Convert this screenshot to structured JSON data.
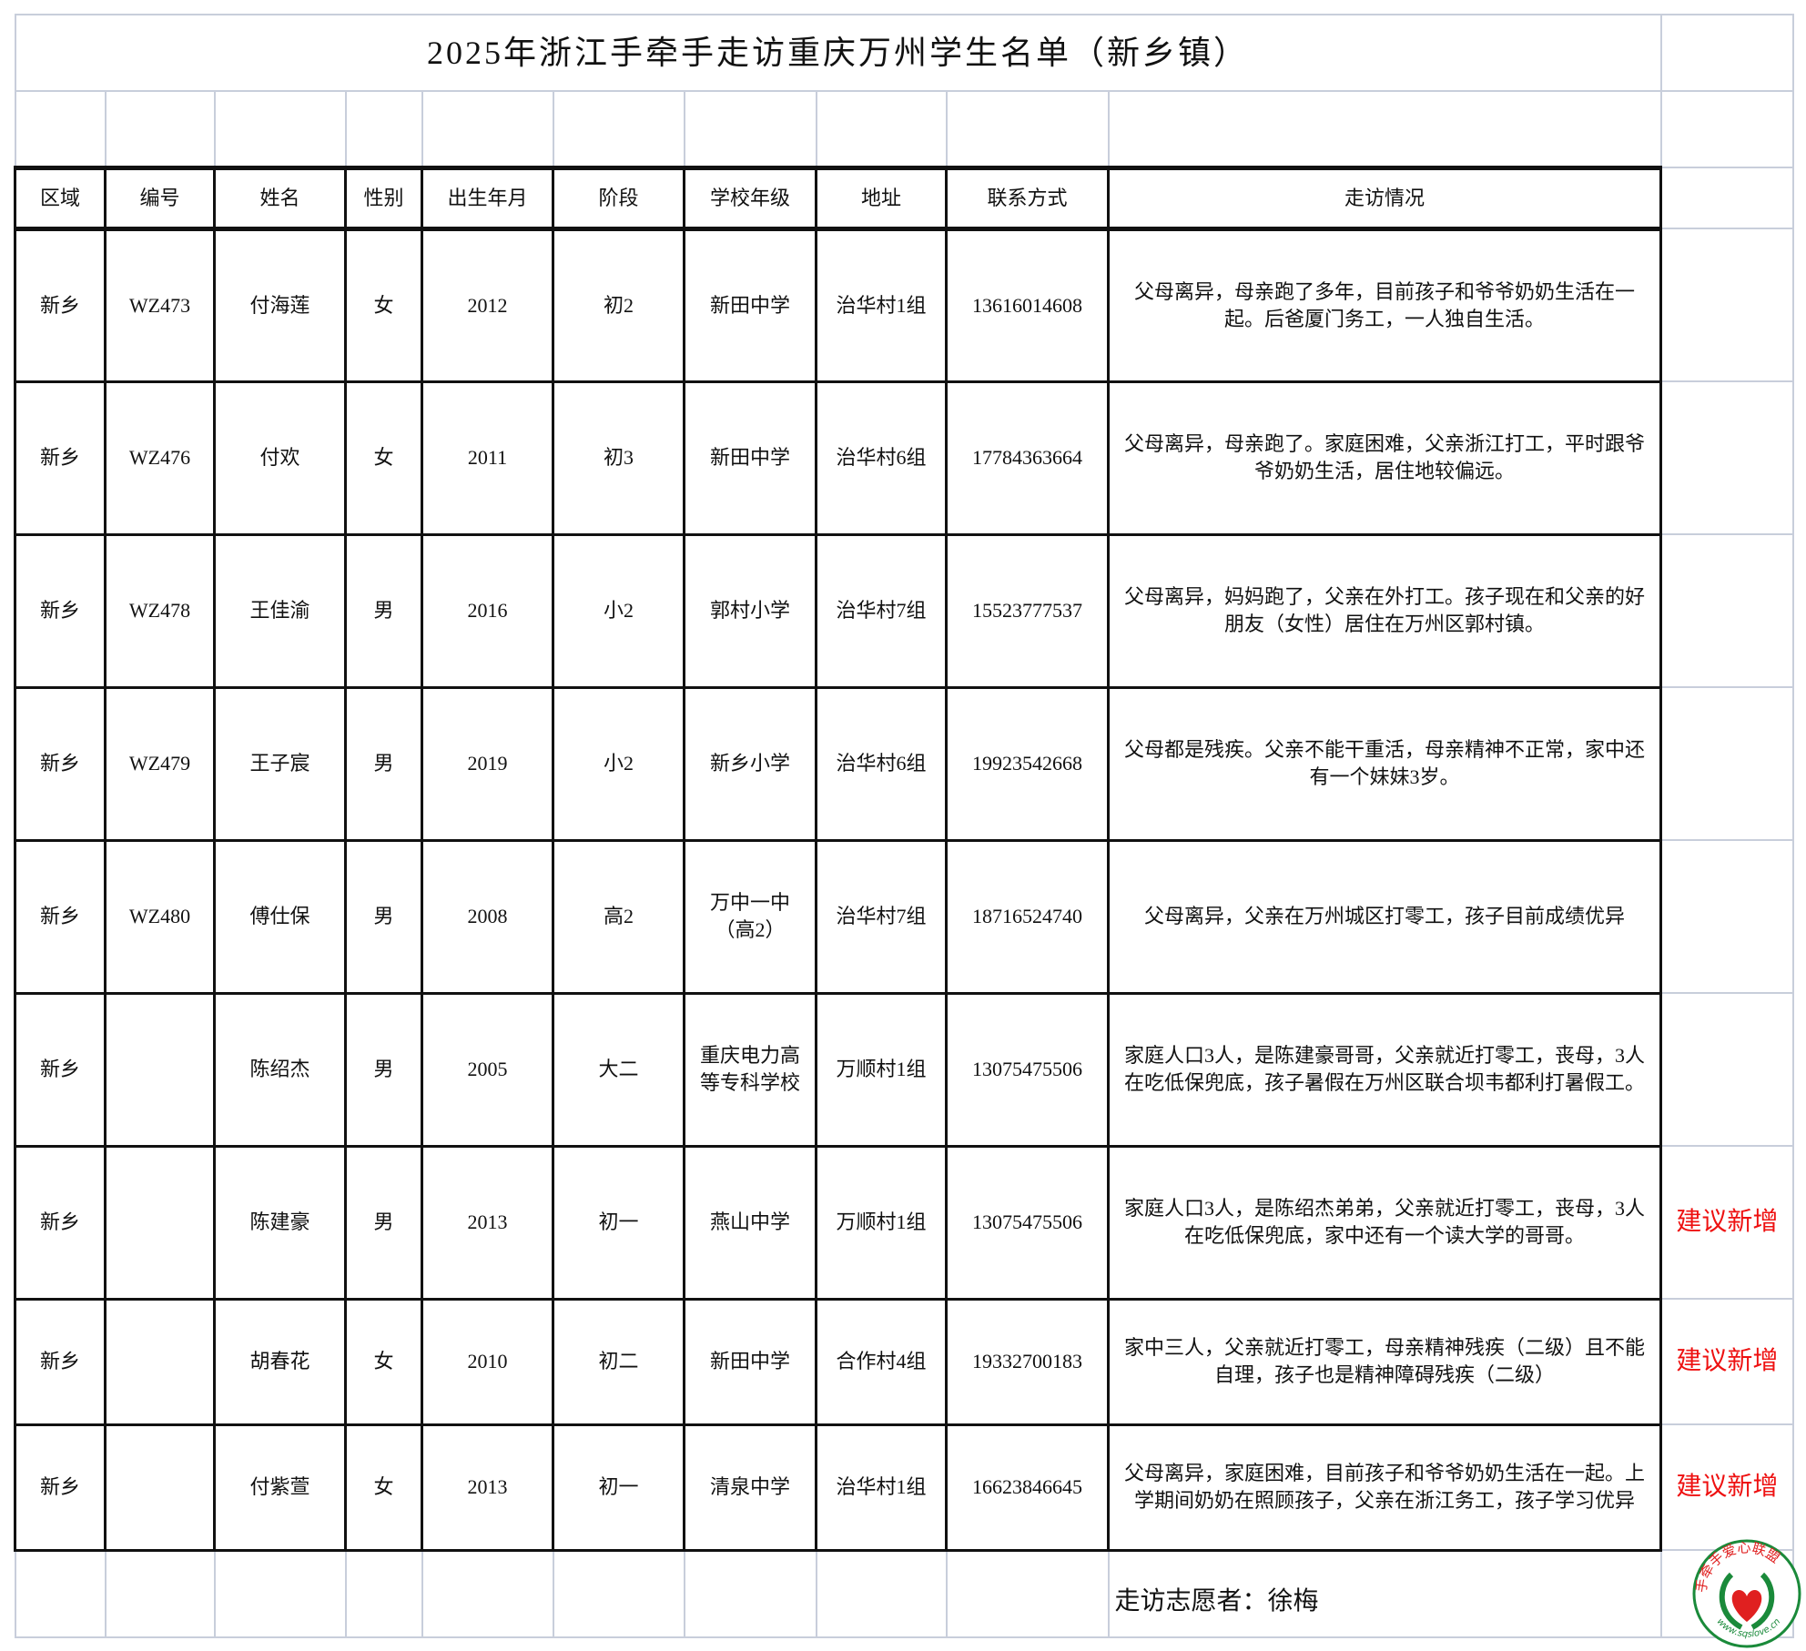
{
  "title": "2025年浙江手牵手走访重庆万州学生名单（新乡镇）",
  "headers": [
    "区域",
    "编号",
    "姓名",
    "性别",
    "出生年月",
    "阶段",
    "学校年级",
    "地址",
    "联系方式",
    "走访情况"
  ],
  "rows": [
    {
      "region": "新乡",
      "id": "WZ473",
      "name": "付海莲",
      "gender": "女",
      "birth": "2012",
      "stage": "初2",
      "school": "新田中学",
      "address": "治华村1组",
      "phone": "13616014608",
      "visit": "父母离异，母亲跑了多年，目前孩子和爷爷奶奶生活在一起。后爸厦门务工，一人独自生活。",
      "note": ""
    },
    {
      "region": "新乡",
      "id": "WZ476",
      "name": "付欢",
      "gender": "女",
      "birth": "2011",
      "stage": "初3",
      "school": "新田中学",
      "address": "治华村6组",
      "phone": "17784363664",
      "visit": "父母离异，母亲跑了。家庭困难，父亲浙江打工，平时跟爷爷奶奶生活，居住地较偏远。",
      "note": ""
    },
    {
      "region": "新乡",
      "id": "WZ478",
      "name": "王佳渝",
      "gender": "男",
      "birth": "2016",
      "stage": "小2",
      "school": "郭村小学",
      "address": "治华村7组",
      "phone": "15523777537",
      "visit": "父母离异，妈妈跑了，父亲在外打工。孩子现在和父亲的好朋友（女性）居住在万州区郭村镇。",
      "note": ""
    },
    {
      "region": "新乡",
      "id": "WZ479",
      "name": "王子宸",
      "gender": "男",
      "birth": "2019",
      "stage": "小2",
      "school": "新乡小学",
      "address": "治华村6组",
      "phone": "19923542668",
      "visit": "父母都是残疾。父亲不能干重活，母亲精神不正常，家中还有一个妹妹3岁。",
      "note": ""
    },
    {
      "region": "新乡",
      "id": "WZ480",
      "name": "傅仕保",
      "gender": "男",
      "birth": "2008",
      "stage": "高2",
      "school": "万中一中（高2）",
      "address": "治华村7组",
      "phone": "18716524740",
      "visit": "父母离异，父亲在万州城区打零工，孩子目前成绩优异",
      "note": ""
    },
    {
      "region": "新乡",
      "id": "",
      "name": "陈绍杰",
      "gender": "男",
      "birth": "2005",
      "stage": "大二",
      "school": "重庆电力高等专科学校",
      "address": "万顺村1组",
      "phone": "13075475506",
      "visit": "家庭人口3人，是陈建豪哥哥，父亲就近打零工，丧母，3人在吃低保兜底，孩子暑假在万州区联合坝韦都利打暑假工。",
      "note": ""
    },
    {
      "region": "新乡",
      "id": "",
      "name": "陈建豪",
      "gender": "男",
      "birth": "2013",
      "stage": "初一",
      "school": "燕山中学",
      "address": "万顺村1组",
      "phone": "13075475506",
      "visit": "家庭人口3人，是陈绍杰弟弟，父亲就近打零工，丧母，3人在吃低保兜底，家中还有一个读大学的哥哥。",
      "note": "建议新增"
    },
    {
      "region": "新乡",
      "id": "",
      "name": "胡春花",
      "gender": "女",
      "birth": "2010",
      "stage": "初二",
      "school": "新田中学",
      "address": "合作村4组",
      "phone": "19332700183",
      "visit": "家中三人，父亲就近打零工，母亲精神残疾（二级）且不能自理，孩子也是精神障碍残疾（二级）",
      "note": "建议新增"
    },
    {
      "region": "新乡",
      "id": "",
      "name": "付紫萱",
      "gender": "女",
      "birth": "2013",
      "stage": "初一",
      "school": "清泉中学",
      "address": "治华村1组",
      "phone": "16623846645",
      "visit": "父母离异，家庭困难，目前孩子和爷爷奶奶生活在一起。上学期间奶奶在照顾孩子，父亲在浙江务工，孩子学习优异",
      "note": "建议新增"
    }
  ],
  "footer": {
    "volunteer": "走访志愿者：徐梅"
  },
  "logo": {
    "text": "手牵手爱心联盟",
    "url": "www.sqslove.cn",
    "icon": "heart-hands-logo"
  },
  "colors": {
    "note": "#ee1111",
    "logo_green": "#1a8a3a",
    "logo_red": "#e02020",
    "grid": "#c8cedb"
  }
}
